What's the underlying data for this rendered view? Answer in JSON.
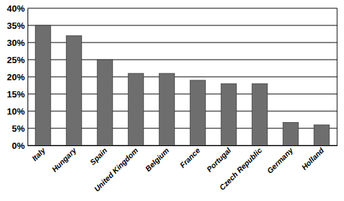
{
  "chart_data": {
    "type": "bar",
    "categories": [
      "Italy",
      "Hungary",
      "Spain",
      "United Kingdom",
      "Belgium",
      "France",
      "Portugal",
      "Czech Republic",
      "Germany",
      "Holland"
    ],
    "values": [
      35,
      32,
      25,
      21,
      21,
      19,
      18,
      18,
      6.7,
      6
    ],
    "color": "#6e6e6e",
    "ylim": [
      0,
      40
    ],
    "yticks": [
      {
        "value": 0,
        "label": "0%"
      },
      {
        "value": 5,
        "label": "5%"
      },
      {
        "value": 10,
        "label": "10%"
      },
      {
        "value": 15,
        "label": "15%"
      },
      {
        "value": 20,
        "label": "20%"
      },
      {
        "value": 25,
        "label": "25%"
      },
      {
        "value": 30,
        "label": "30%"
      },
      {
        "value": 35,
        "label": "35%"
      },
      {
        "value": 40,
        "label": "40%"
      }
    ],
    "grid": true
  }
}
